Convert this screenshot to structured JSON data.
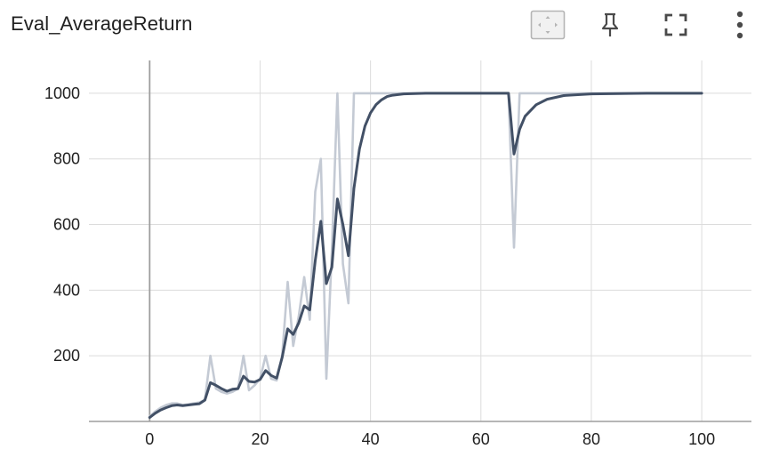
{
  "header": {
    "title": "Eval_AverageReturn",
    "icons": [
      "fit-domain-icon",
      "pin-icon",
      "fullscreen-icon",
      "more-vert-icon"
    ]
  },
  "colors": {
    "smoothed": "#425066",
    "raw": "#c4cad4",
    "grid": "#dcdcdc",
    "axis": "#9e9e9e"
  },
  "chart_data": {
    "type": "line",
    "title": "Eval_AverageReturn",
    "xlabel": "",
    "ylabel": "",
    "xlim": [
      -11,
      109
    ],
    "ylim": [
      0,
      1100
    ],
    "xticks": [
      0,
      20,
      40,
      60,
      80,
      100
    ],
    "yticks": [
      200,
      400,
      600,
      800,
      1000
    ],
    "xtick_labels": [
      "0",
      "20",
      "40",
      "60",
      "80",
      "100"
    ],
    "ytick_labels": [
      "200",
      "400",
      "600",
      "800",
      "1000"
    ],
    "grid": true,
    "series": [
      {
        "name": "raw",
        "x": [
          0,
          1,
          2,
          3,
          4,
          5,
          6,
          7,
          8,
          9,
          10,
          11,
          12,
          13,
          14,
          15,
          16,
          17,
          18,
          19,
          20,
          21,
          22,
          23,
          24,
          25,
          26,
          27,
          28,
          29,
          30,
          31,
          32,
          33,
          34,
          35,
          36,
          37,
          38,
          39,
          40,
          45,
          50,
          55,
          60,
          65,
          66,
          67,
          70,
          80,
          90,
          100
        ],
        "y": [
          15,
          30,
          42,
          50,
          55,
          55,
          50,
          52,
          55,
          58,
          65,
          200,
          100,
          90,
          85,
          90,
          100,
          200,
          95,
          110,
          130,
          200,
          130,
          125,
          200,
          425,
          230,
          320,
          440,
          310,
          700,
          800,
          130,
          520,
          1000,
          480,
          360,
          1000,
          1000,
          1000,
          1000,
          1000,
          1000,
          1000,
          1000,
          1000,
          530,
          1000,
          1000,
          1000,
          1000,
          1000
        ]
      },
      {
        "name": "smoothed",
        "x": [
          0,
          1,
          2,
          3,
          4,
          5,
          6,
          7,
          8,
          9,
          10,
          11,
          12,
          13,
          14,
          15,
          16,
          17,
          18,
          19,
          20,
          21,
          22,
          23,
          24,
          25,
          26,
          27,
          28,
          29,
          30,
          31,
          32,
          33,
          34,
          35,
          36,
          37,
          38,
          39,
          40,
          41,
          42,
          43,
          44,
          46,
          50,
          55,
          60,
          65,
          66,
          67,
          68,
          70,
          72,
          75,
          80,
          90,
          100
        ],
        "y": [
          12,
          25,
          35,
          42,
          48,
          50,
          48,
          50,
          52,
          54,
          65,
          118,
          110,
          100,
          92,
          98,
          100,
          138,
          122,
          120,
          128,
          155,
          140,
          132,
          195,
          282,
          265,
          300,
          352,
          340,
          490,
          610,
          420,
          470,
          678,
          600,
          505,
          710,
          830,
          900,
          940,
          965,
          980,
          990,
          994,
          998,
          1000,
          1000,
          1000,
          1000,
          815,
          890,
          930,
          965,
          982,
          993,
          998,
          1000,
          1000
        ]
      }
    ]
  }
}
